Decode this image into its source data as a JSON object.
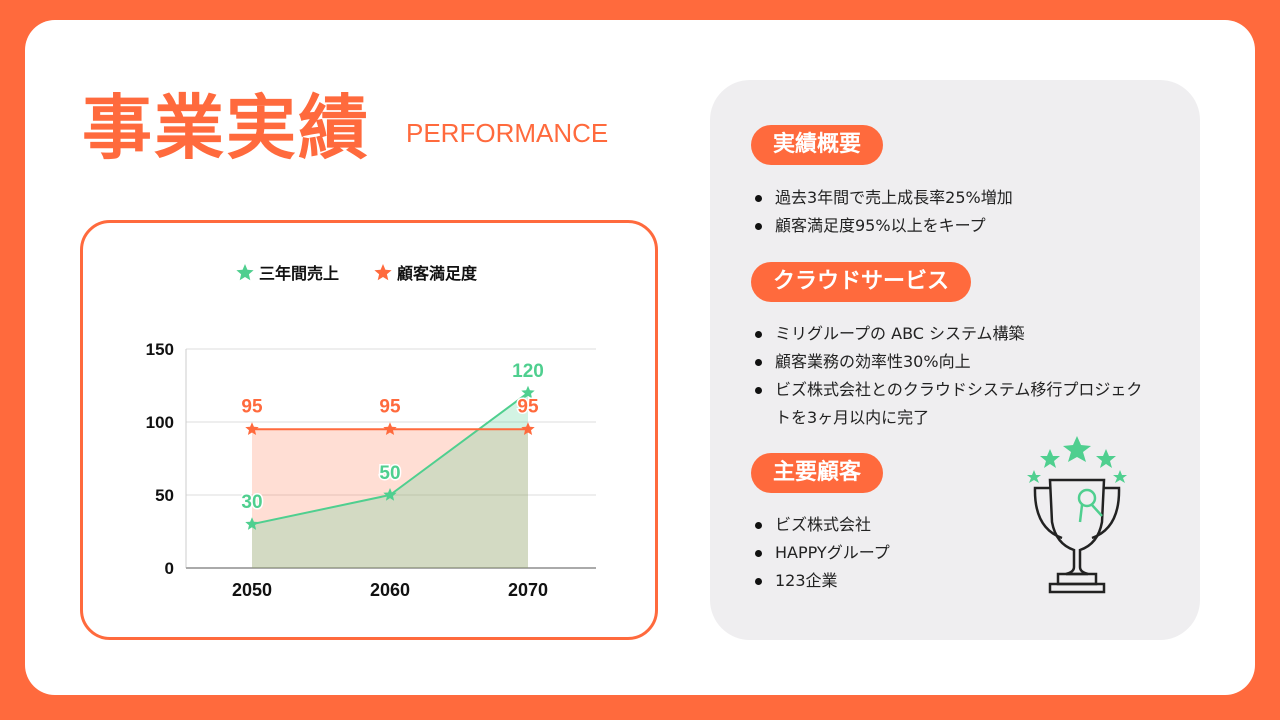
{
  "header": {
    "title": "事業実績",
    "subtitle": "PERFORMANCE"
  },
  "colors": {
    "accent": "#ff6a3d",
    "green": "#4fcf8f",
    "panel": "#efeef0"
  },
  "chart_data": {
    "type": "area",
    "categories": [
      "2050",
      "2060",
      "2070"
    ],
    "series": [
      {
        "name": "三年間売上",
        "values": [
          30,
          50,
          120
        ],
        "color": "#4fcf8f",
        "marker": "star"
      },
      {
        "name": "顧客満足度",
        "values": [
          95,
          95,
          95
        ],
        "color": "#ff6a3d",
        "marker": "star"
      }
    ],
    "ylim": [
      0,
      150
    ],
    "yticks": [
      "0",
      "50",
      "100",
      "150"
    ],
    "grid": true,
    "legend": "top"
  },
  "sections": [
    {
      "title": "実績概要",
      "items": [
        "過去3年間で売上成長率25%増加",
        "顧客満足度95%以上をキープ"
      ]
    },
    {
      "title": "クラウドサービス",
      "items": [
        "ミリグループの ABC システム構築",
        "顧客業務の効率性30%向上",
        "ビズ株式会社とのクラウドシステム移行プロジェクトを3ヶ月以内に完了"
      ]
    },
    {
      "title": "主要顧客",
      "items": [
        "ビズ株式会社",
        "HAPPYグループ",
        "123企業"
      ]
    }
  ],
  "icons": {
    "trophy": "trophy-with-stars-icon"
  }
}
